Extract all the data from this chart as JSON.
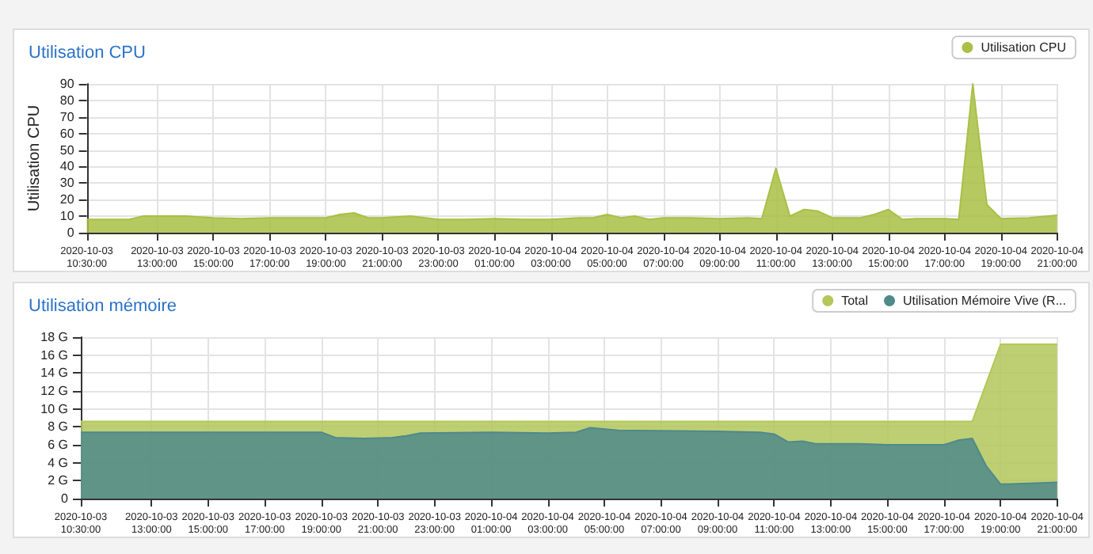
{
  "chart_data": [
    {
      "type": "area",
      "title": "Utilisation CPU",
      "ylabel": "Utilisation CPU",
      "legend": "top right",
      "grid": true,
      "xlim": [
        "2020-10-03T10:30",
        "2020-10-04T21:00"
      ],
      "xticks": [
        {
          "value": "2020-10-03T10:30",
          "label": "2020-10-03 10:30:00"
        },
        {
          "value": "2020-10-03T13:00",
          "label": "2020-10-03 13:00:00"
        },
        {
          "value": "2020-10-03T15:00",
          "label": "2020-10-03 15:00:00"
        },
        {
          "value": "2020-10-03T17:00",
          "label": "2020-10-03 17:00:00"
        },
        {
          "value": "2020-10-03T19:00",
          "label": "2020-10-03 19:00:00"
        },
        {
          "value": "2020-10-03T21:00",
          "label": "2020-10-03 21:00:00"
        },
        {
          "value": "2020-10-03T23:00",
          "label": "2020-10-03 23:00:00"
        },
        {
          "value": "2020-10-04T01:00",
          "label": "2020-10-04 01:00:00"
        },
        {
          "value": "2020-10-04T03:00",
          "label": "2020-10-04 03:00:00"
        },
        {
          "value": "2020-10-04T05:00",
          "label": "2020-10-04 05:00:00"
        },
        {
          "value": "2020-10-04T07:00",
          "label": "2020-10-04 07:00:00"
        },
        {
          "value": "2020-10-04T09:00",
          "label": "2020-10-04 09:00:00"
        },
        {
          "value": "2020-10-04T11:00",
          "label": "2020-10-04 11:00:00"
        },
        {
          "value": "2020-10-04T13:00",
          "label": "2020-10-04 13:00:00"
        },
        {
          "value": "2020-10-04T15:00",
          "label": "2020-10-04 15:00:00"
        },
        {
          "value": "2020-10-04T17:00",
          "label": "2020-10-04 17:00:00"
        },
        {
          "value": "2020-10-04T19:00",
          "label": "2020-10-04 19:00:00"
        },
        {
          "value": "2020-10-04T21:00",
          "label": "2020-10-04 21:00:00"
        }
      ],
      "ylim": [
        0,
        90
      ],
      "yticks": [
        0,
        10,
        20,
        30,
        40,
        50,
        60,
        70,
        80,
        90
      ],
      "series": [
        {
          "name": "Utilisation CPU",
          "color": "#a9bf45",
          "x": [
            "2020-10-03T10:30",
            "2020-10-03T11:15",
            "2020-10-03T12:00",
            "2020-10-03T12:30",
            "2020-10-03T13:00",
            "2020-10-03T14:00",
            "2020-10-03T15:00",
            "2020-10-03T16:00",
            "2020-10-03T17:00",
            "2020-10-03T18:00",
            "2020-10-03T19:00",
            "2020-10-03T19:30",
            "2020-10-03T20:00",
            "2020-10-03T20:30",
            "2020-10-03T21:00",
            "2020-10-03T22:00",
            "2020-10-03T23:00",
            "2020-10-04T00:00",
            "2020-10-04T01:00",
            "2020-10-04T02:00",
            "2020-10-04T03:00",
            "2020-10-04T04:00",
            "2020-10-04T04:30",
            "2020-10-04T05:00",
            "2020-10-04T05:30",
            "2020-10-04T06:00",
            "2020-10-04T06:30",
            "2020-10-04T07:00",
            "2020-10-04T08:00",
            "2020-10-04T09:00",
            "2020-10-04T10:00",
            "2020-10-04T10:30",
            "2020-10-04T11:00",
            "2020-10-04T11:30",
            "2020-10-04T12:00",
            "2020-10-04T12:30",
            "2020-10-04T13:00",
            "2020-10-04T14:00",
            "2020-10-04T14:30",
            "2020-10-04T15:00",
            "2020-10-04T15:30",
            "2020-10-04T16:00",
            "2020-10-04T17:00",
            "2020-10-04T17:30",
            "2020-10-04T18:00",
            "2020-10-04T18:30",
            "2020-10-04T19:00",
            "2020-10-04T20:00",
            "2020-10-04T21:00"
          ],
          "values": [
            8,
            8,
            8,
            10,
            10,
            10,
            9,
            8.5,
            9,
            9,
            9,
            11,
            12,
            9,
            9,
            10,
            8,
            8,
            8.5,
            8,
            8,
            9,
            9,
            11,
            9,
            10,
            8,
            9,
            9,
            8.5,
            9,
            8.5,
            39,
            10,
            14,
            13,
            9,
            9,
            11,
            14,
            8,
            8.5,
            8.5,
            8,
            90,
            17,
            8.5,
            9,
            10.5
          ]
        }
      ]
    },
    {
      "type": "area",
      "title": "Utilisation mémoire",
      "legend": "top right",
      "grid": true,
      "xlim": [
        "2020-10-03T10:30",
        "2020-10-04T21:00"
      ],
      "xticks": [
        {
          "value": "2020-10-03T10:30",
          "label": "2020-10-03 10:30:00"
        },
        {
          "value": "2020-10-03T13:00",
          "label": "2020-10-03 13:00:00"
        },
        {
          "value": "2020-10-03T15:00",
          "label": "2020-10-03 15:00:00"
        },
        {
          "value": "2020-10-03T17:00",
          "label": "2020-10-03 17:00:00"
        },
        {
          "value": "2020-10-03T19:00",
          "label": "2020-10-03 19:00:00"
        },
        {
          "value": "2020-10-03T21:00",
          "label": "2020-10-03 21:00:00"
        },
        {
          "value": "2020-10-03T23:00",
          "label": "2020-10-03 23:00:00"
        },
        {
          "value": "2020-10-04T01:00",
          "label": "2020-10-04 01:00:00"
        },
        {
          "value": "2020-10-04T03:00",
          "label": "2020-10-04 03:00:00"
        },
        {
          "value": "2020-10-04T05:00",
          "label": "2020-10-04 05:00:00"
        },
        {
          "value": "2020-10-04T07:00",
          "label": "2020-10-04 07:00:00"
        },
        {
          "value": "2020-10-04T09:00",
          "label": "2020-10-04 09:00:00"
        },
        {
          "value": "2020-10-04T11:00",
          "label": "2020-10-04 11:00:00"
        },
        {
          "value": "2020-10-04T13:00",
          "label": "2020-10-04 13:00:00"
        },
        {
          "value": "2020-10-04T15:00",
          "label": "2020-10-04 15:00:00"
        },
        {
          "value": "2020-10-04T17:00",
          "label": "2020-10-04 17:00:00"
        },
        {
          "value": "2020-10-04T19:00",
          "label": "2020-10-04 19:00:00"
        },
        {
          "value": "2020-10-04T21:00",
          "label": "2020-10-04 21:00:00"
        }
      ],
      "ylim": [
        0,
        18
      ],
      "yticks": [
        0,
        {
          "value": 2,
          "label": "2 G"
        },
        {
          "value": 4,
          "label": "4 G"
        },
        {
          "value": 6,
          "label": "6 G"
        },
        {
          "value": 8,
          "label": "8 G"
        },
        {
          "value": 10,
          "label": "10 G"
        },
        {
          "value": 12,
          "label": "12 G"
        },
        {
          "value": 14,
          "label": "14 G"
        },
        {
          "value": 16,
          "label": "16 G"
        },
        {
          "value": 18,
          "label": "18 G"
        }
      ],
      "series": [
        {
          "name": "Total",
          "color": "#b3c75a",
          "x": [
            "2020-10-03T10:30",
            "2020-10-04T18:00",
            "2020-10-04T19:00",
            "2020-10-04T21:00"
          ],
          "values": [
            8.6,
            8.6,
            17.2,
            17.2
          ]
        },
        {
          "name": "Utilisation Mémoire Vive (R...",
          "color": "#4f8a8b",
          "x": [
            "2020-10-03T10:30",
            "2020-10-03T19:00",
            "2020-10-03T19:30",
            "2020-10-03T20:30",
            "2020-10-03T21:30",
            "2020-10-03T22:00",
            "2020-10-03T22:30",
            "2020-10-04T01:00",
            "2020-10-04T03:00",
            "2020-10-04T04:00",
            "2020-10-04T04:30",
            "2020-10-04T05:30",
            "2020-10-04T09:00",
            "2020-10-04T10:30",
            "2020-10-04T11:00",
            "2020-10-04T11:30",
            "2020-10-04T12:00",
            "2020-10-04T12:30",
            "2020-10-04T14:00",
            "2020-10-04T15:00",
            "2020-10-04T17:00",
            "2020-10-04T17:30",
            "2020-10-04T18:00",
            "2020-10-04T18:30",
            "2020-10-04T19:00",
            "2020-10-04T20:00",
            "2020-10-04T21:00"
          ],
          "values": [
            7.4,
            7.4,
            6.8,
            6.7,
            6.8,
            7.0,
            7.3,
            7.4,
            7.3,
            7.4,
            7.9,
            7.6,
            7.5,
            7.4,
            7.2,
            6.3,
            6.4,
            6.1,
            6.1,
            6.0,
            6.0,
            6.5,
            6.7,
            3.6,
            1.6,
            1.7,
            1.8
          ]
        }
      ]
    }
  ]
}
